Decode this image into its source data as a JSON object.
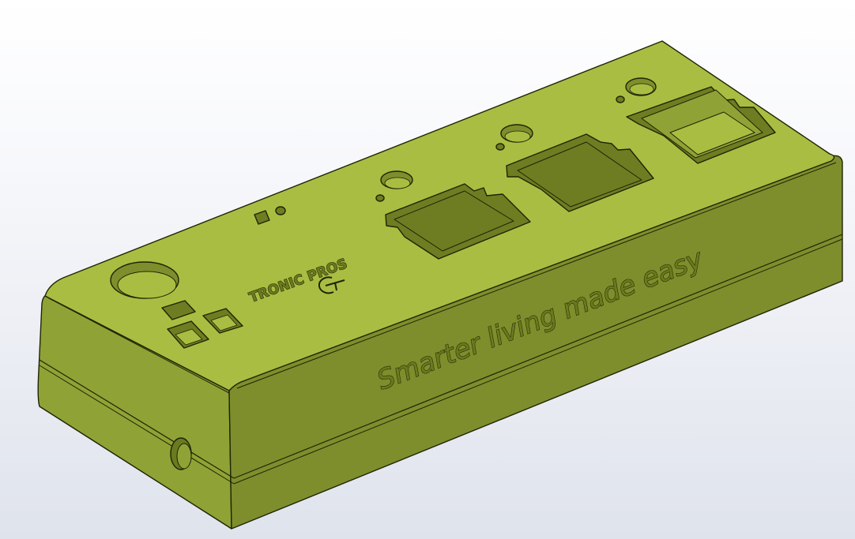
{
  "model": {
    "brand_label": "TRONIC PROS",
    "slogan": "Smarter living made easy",
    "colors": {
      "top_face": "#a9bd43",
      "front_face": "#7e8e2c",
      "left_face": "#8fa235",
      "cutout": "#6f7d22",
      "edge": "#1f2405",
      "background_top": "#ffffff",
      "background_bottom": "#dfe3ec"
    }
  }
}
